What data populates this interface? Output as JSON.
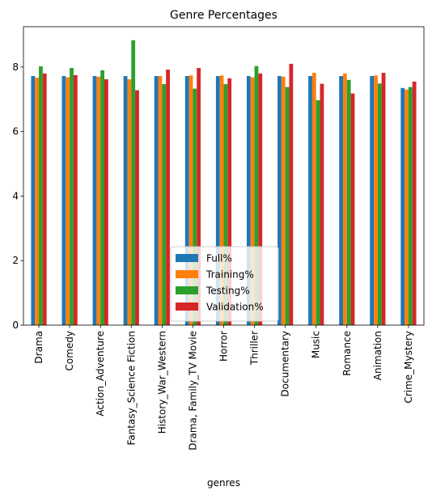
{
  "chart_data": {
    "type": "bar",
    "title": "Genre Percentages",
    "xlabel": "genres",
    "ylabel": "",
    "ylim": [
      0,
      9.25
    ],
    "yticks": [
      0,
      2,
      4,
      6,
      8
    ],
    "grid": false,
    "legend_position": "lower-center",
    "categories": [
      "Drama",
      "Comedy",
      "Action_Adventure",
      "Fantasy_Science Fiction",
      "History_War_Western",
      "Drama, Family_TV Movie",
      "Horror",
      "Thriller",
      "Documentary",
      "Music",
      "Romance",
      "Animation",
      "Crime_Mystery"
    ],
    "series": [
      {
        "name": "Full%",
        "color": "#1f77b4",
        "values": [
          7.72,
          7.72,
          7.72,
          7.72,
          7.72,
          7.72,
          7.72,
          7.72,
          7.72,
          7.72,
          7.72,
          7.72,
          7.35
        ]
      },
      {
        "name": "Training%",
        "color": "#ff7f0e",
        "values": [
          7.67,
          7.68,
          7.7,
          7.62,
          7.72,
          7.74,
          7.74,
          7.68,
          7.7,
          7.82,
          7.8,
          7.74,
          7.3
        ]
      },
      {
        "name": "Testing%",
        "color": "#2ca02c",
        "values": [
          8.02,
          7.97,
          7.9,
          8.83,
          7.47,
          7.33,
          7.47,
          8.03,
          7.38,
          6.97,
          7.6,
          7.49,
          7.38
        ]
      },
      {
        "name": "Validation%",
        "color": "#d62728",
        "values": [
          7.8,
          7.75,
          7.62,
          7.28,
          7.92,
          7.97,
          7.65,
          7.8,
          8.1,
          7.48,
          7.18,
          7.82,
          7.55
        ]
      }
    ]
  }
}
